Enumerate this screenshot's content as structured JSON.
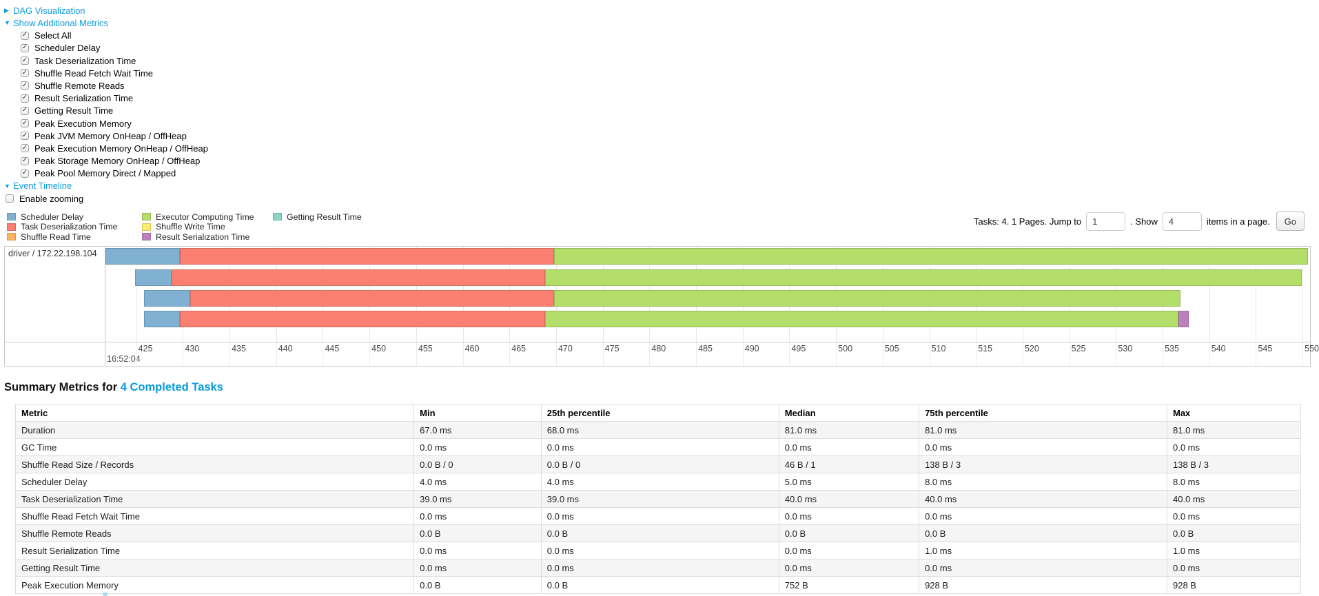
{
  "sections": {
    "dag": {
      "label": "DAG Visualization",
      "arrow": "▶"
    },
    "additional_metrics": {
      "label": "Show Additional Metrics",
      "arrow": "▼",
      "items": [
        {
          "label": "Select All",
          "checked": true
        },
        {
          "label": "Scheduler Delay",
          "checked": true
        },
        {
          "label": "Task Deserialization Time",
          "checked": true
        },
        {
          "label": "Shuffle Read Fetch Wait Time",
          "checked": true
        },
        {
          "label": "Shuffle Remote Reads",
          "checked": true
        },
        {
          "label": "Result Serialization Time",
          "checked": true
        },
        {
          "label": "Getting Result Time",
          "checked": true
        },
        {
          "label": "Peak Execution Memory",
          "checked": true
        },
        {
          "label": "Peak JVM Memory OnHeap / OffHeap",
          "checked": true
        },
        {
          "label": "Peak Execution Memory OnHeap / OffHeap",
          "checked": true
        },
        {
          "label": "Peak Storage Memory OnHeap / OffHeap",
          "checked": true
        },
        {
          "label": "Peak Pool Memory Direct / Mapped",
          "checked": true
        }
      ]
    },
    "event_timeline": {
      "label": "Event Timeline",
      "arrow": "▼"
    },
    "enable_zooming": {
      "label": "Enable zooming",
      "checked": false
    }
  },
  "colors": {
    "link_blue": "#0b9bdc"
  },
  "legend": {
    "columns": [
      [
        {
          "key": "scheduler-delay",
          "label": "Scheduler Delay"
        },
        {
          "key": "task-deserialization",
          "label": "Task Deserialization Time"
        },
        {
          "key": "shuffle-read",
          "label": "Shuffle Read Time"
        }
      ],
      [
        {
          "key": "executor-computing",
          "label": "Executor Computing Time"
        },
        {
          "key": "shuffle-write",
          "label": "Shuffle Write Time"
        },
        {
          "key": "result-serialization",
          "label": "Result Serialization Time"
        }
      ],
      [
        {
          "key": "getting-result",
          "label": "Getting Result Time"
        }
      ]
    ]
  },
  "pager": {
    "tasks_text": "Tasks: 4. 1 Pages. Jump to",
    "jump_value": "1",
    "show_text": ". Show",
    "show_value": "4",
    "items_text": "items in a page.",
    "go_label": "Go"
  },
  "chart_data": {
    "type": "timeline",
    "title": "Event Timeline",
    "group_label": "driver / 172.22.198.104",
    "x_axis": {
      "unit": "ms within second",
      "min": 421.7,
      "max": 550.8,
      "tick_start": 425,
      "tick_step": 5,
      "tick_end": 550,
      "time_of_day_label": "16:52:04"
    },
    "series_colors": {
      "scheduler-delay": {
        "fill": "#80B1D3",
        "stroke": "#6B94B0"
      },
      "task-deserialization": {
        "fill": "#FB8072",
        "stroke": "#D26B5F"
      },
      "shuffle-read": {
        "fill": "#FDB462",
        "stroke": "#D39952"
      },
      "executor-computing": {
        "fill": "#B3DE69",
        "stroke": "#95B957"
      },
      "shuffle-write": {
        "fill": "#FFED6F",
        "stroke": "#D5C65C"
      },
      "result-serialization": {
        "fill": "#BC80BD",
        "stroke": "#9D6B9E"
      },
      "getting-result": {
        "fill": "#8DD3C7",
        "stroke": "#75B0A6"
      }
    },
    "tasks": [
      {
        "segments": [
          [
            "scheduler-delay",
            421.7,
            429.7
          ],
          [
            "task-deserialization",
            429.7,
            469.8
          ],
          [
            "executor-computing",
            469.8,
            550.6
          ]
        ]
      },
      {
        "segments": [
          [
            "scheduler-delay",
            424.9,
            428.8
          ],
          [
            "task-deserialization",
            428.8,
            468.8
          ],
          [
            "executor-computing",
            468.8,
            549.9
          ]
        ]
      },
      {
        "segments": [
          [
            "scheduler-delay",
            425.8,
            430.8
          ],
          [
            "task-deserialization",
            430.8,
            469.8
          ],
          [
            "executor-computing",
            469.8,
            536.9
          ]
        ]
      },
      {
        "segments": [
          [
            "scheduler-delay",
            425.8,
            429.7
          ],
          [
            "task-deserialization",
            429.7,
            468.8
          ],
          [
            "executor-computing",
            468.8,
            536.7
          ],
          [
            "result-serialization",
            536.7,
            537.8
          ]
        ]
      }
    ]
  },
  "summary": {
    "title_prefix": "Summary Metrics for ",
    "title_link": "4 Completed Tasks",
    "columns": [
      "Metric",
      "Min",
      "25th percentile",
      "Median",
      "75th percentile",
      "Max"
    ],
    "col_widths_pct": [
      31,
      9.9,
      18.5,
      10.9,
      19.3,
      10.4
    ],
    "rows": [
      {
        "metric": "Duration",
        "values": [
          "67.0 ms",
          "68.0 ms",
          "81.0 ms",
          "81.0 ms",
          "81.0 ms"
        ]
      },
      {
        "metric": "GC Time",
        "values": [
          "0.0 ms",
          "0.0 ms",
          "0.0 ms",
          "0.0 ms",
          "0.0 ms"
        ]
      },
      {
        "metric": "Shuffle Read Size / Records",
        "values": [
          "0.0 B / 0",
          "0.0 B / 0",
          "46 B / 1",
          "138 B / 3",
          "138 B / 3"
        ]
      },
      {
        "metric": "Scheduler Delay",
        "values": [
          "4.0 ms",
          "4.0 ms",
          "5.0 ms",
          "8.0 ms",
          "8.0 ms"
        ]
      },
      {
        "metric": "Task Deserialization Time",
        "values": [
          "39.0 ms",
          "39.0 ms",
          "40.0 ms",
          "40.0 ms",
          "40.0 ms"
        ]
      },
      {
        "metric": "Shuffle Read Fetch Wait Time",
        "values": [
          "0.0 ms",
          "0.0 ms",
          "0.0 ms",
          "0.0 ms",
          "0.0 ms"
        ]
      },
      {
        "metric": "Shuffle Remote Reads",
        "values": [
          "0.0 B",
          "0.0 B",
          "0.0 B",
          "0.0 B",
          "0.0 B"
        ]
      },
      {
        "metric": "Result Serialization Time",
        "values": [
          "0.0 ms",
          "0.0 ms",
          "0.0 ms",
          "1.0 ms",
          "1.0 ms"
        ]
      },
      {
        "metric": "Getting Result Time",
        "values": [
          "0.0 ms",
          "0.0 ms",
          "0.0 ms",
          "0.0 ms",
          "0.0 ms"
        ]
      },
      {
        "metric": "Peak Execution Memory",
        "values": [
          "0.0 B",
          "0.0 B",
          "752 B",
          "928 B",
          "928 B"
        ]
      }
    ]
  }
}
